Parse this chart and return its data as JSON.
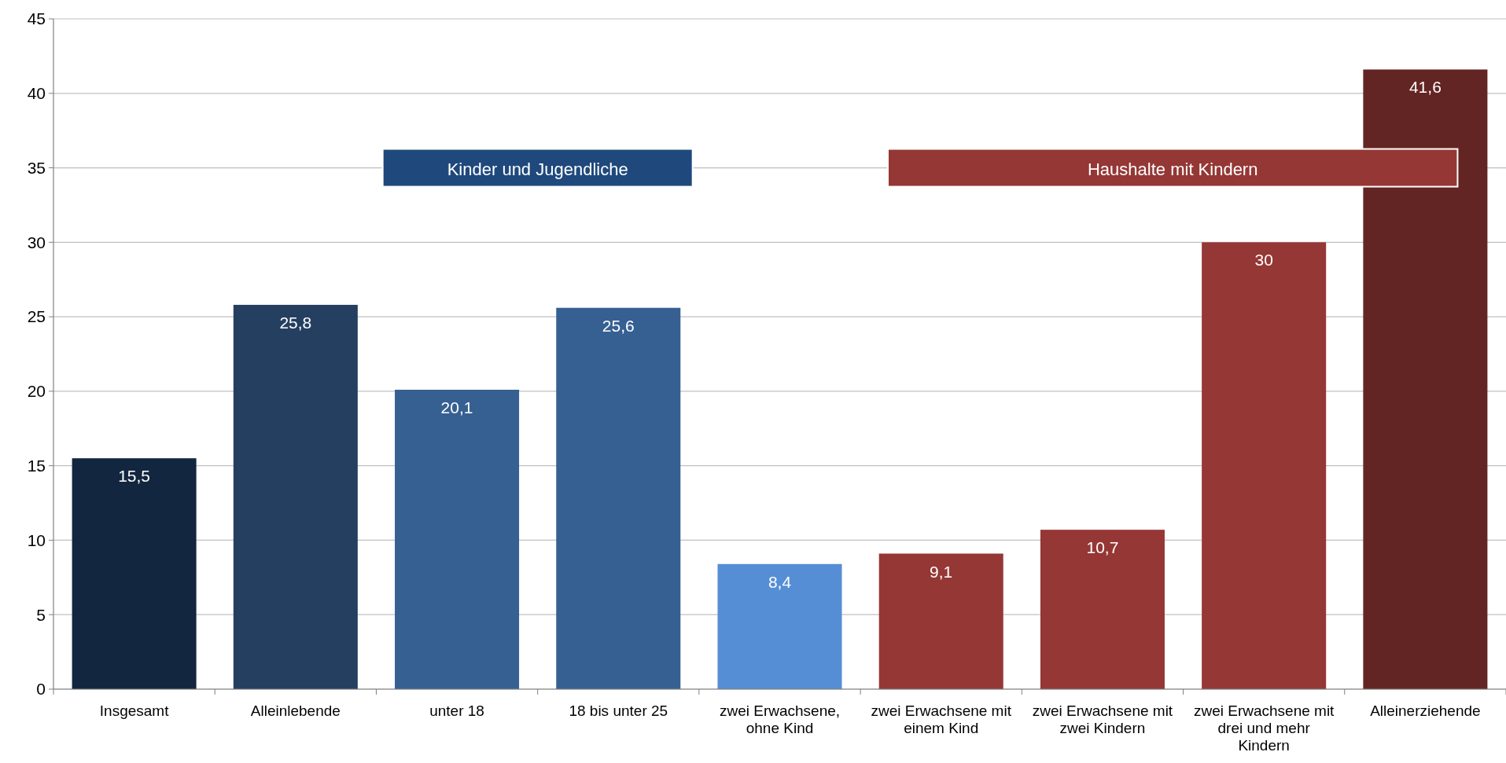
{
  "chart_data": {
    "type": "bar",
    "categories": [
      "Insgesamt",
      "Alleinlebende",
      "unter 18",
      "18 bis unter 25",
      "zwei Erwachsene, ohne Kind",
      "zwei Erwachsene mit einem Kind",
      "zwei Erwachsene mit zwei Kindern",
      "zwei Erwachsene mit drei und mehr Kindern",
      "Alleinerziehende"
    ],
    "values": [
      15.5,
      25.8,
      20.1,
      25.6,
      8.4,
      9.1,
      10.7,
      30,
      41.6
    ],
    "colors": [
      "#132640",
      "#243f60",
      "#366092",
      "#366092",
      "#558ed5",
      "#953735",
      "#953735",
      "#953735",
      "#632523"
    ],
    "value_labels": [
      "15,5",
      "25,8",
      "20,1",
      "25,6",
      "8,4",
      "9,1",
      "10,7",
      "30",
      "41,6"
    ],
    "ylim": [
      0,
      45
    ],
    "yticks": [
      0,
      5,
      10,
      15,
      20,
      25,
      30,
      35,
      40,
      45
    ],
    "grid": "y",
    "annotations": [
      "Kinder und Jugendliche",
      "Haushalte mit Kindern"
    ]
  }
}
